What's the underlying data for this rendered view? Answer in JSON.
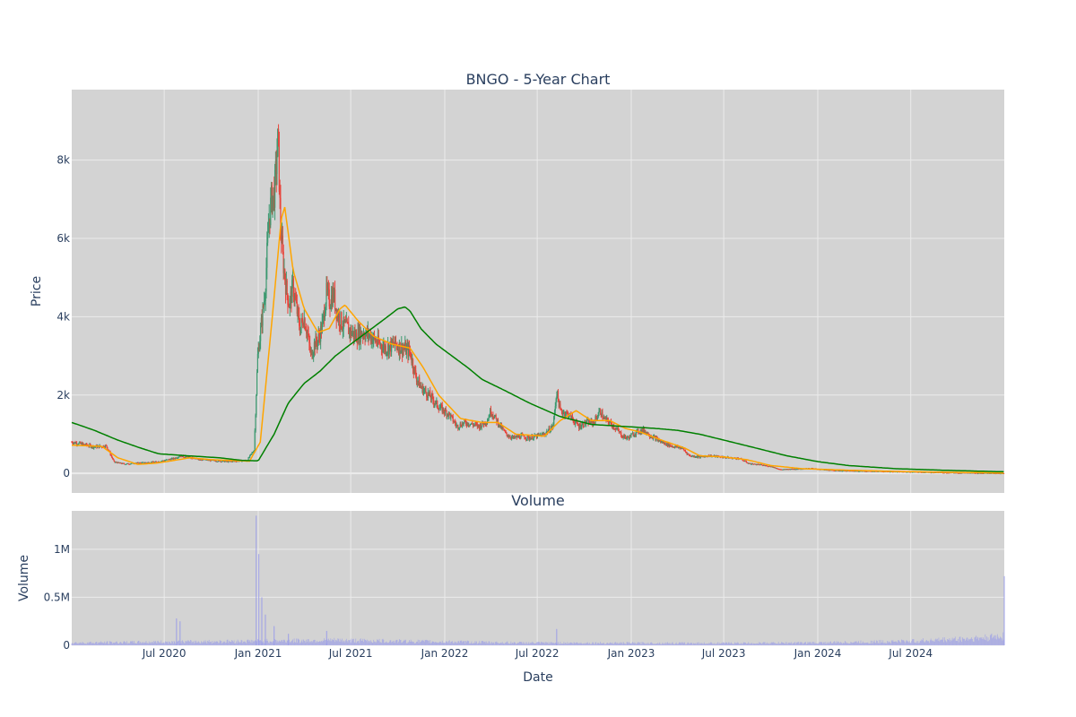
{
  "colors": {
    "plot_bg": "#d3d3d3",
    "grid": "#ebebeb",
    "text": "#2a3f5f",
    "candle_up": "#3d9970",
    "candle_down": "#e8453c",
    "ma_short": "#ffa500",
    "ma_long": "#008000",
    "volume": "#9a9ce8"
  },
  "chart_data": [
    {
      "type": "candlestick",
      "title": "BNGO - 5-Year Chart",
      "ylabel": "Price",
      "ylim": [
        -500,
        9800
      ],
      "yticks": [
        0,
        2000,
        4000,
        6000,
        8000
      ],
      "ytick_labels": [
        "0",
        "2k",
        "4k",
        "6k",
        "8k"
      ],
      "grid": true,
      "legend": "none",
      "price_path": [
        [
          "2020-01-02",
          800
        ],
        [
          "2020-02-15",
          680
        ],
        [
          "2020-03-10",
          700
        ],
        [
          "2020-03-25",
          290
        ],
        [
          "2020-04-15",
          240
        ],
        [
          "2020-05-15",
          270
        ],
        [
          "2020-06-15",
          290
        ],
        [
          "2020-07-20",
          380
        ],
        [
          "2020-08-01",
          450
        ],
        [
          "2020-09-01",
          370
        ],
        [
          "2020-10-01",
          330
        ],
        [
          "2020-11-01",
          300
        ],
        [
          "2020-12-10",
          330
        ],
        [
          "2020-12-24",
          600
        ],
        [
          "2020-12-28",
          2000
        ],
        [
          "2020-12-31",
          3000
        ],
        [
          "2021-01-07",
          3800
        ],
        [
          "2021-01-14",
          4600
        ],
        [
          "2021-01-22",
          6500
        ],
        [
          "2021-01-27",
          7000
        ],
        [
          "2021-02-02",
          7200
        ],
        [
          "2021-02-09",
          8600
        ],
        [
          "2021-02-13",
          6500
        ],
        [
          "2021-02-18",
          5500
        ],
        [
          "2021-02-25",
          4700
        ],
        [
          "2021-03-03",
          4300
        ],
        [
          "2021-03-10",
          4800
        ],
        [
          "2021-03-17",
          4200
        ],
        [
          "2021-03-24",
          3700
        ],
        [
          "2021-03-31",
          4000
        ],
        [
          "2021-04-07",
          3600
        ],
        [
          "2021-04-14",
          3000
        ],
        [
          "2021-04-21",
          3300
        ],
        [
          "2021-04-28",
          3400
        ],
        [
          "2021-05-07",
          3800
        ],
        [
          "2021-05-14",
          4600
        ],
        [
          "2021-05-21",
          4400
        ],
        [
          "2021-05-28",
          4600
        ],
        [
          "2021-06-04",
          4100
        ],
        [
          "2021-06-15",
          3800
        ],
        [
          "2021-06-25",
          3700
        ],
        [
          "2021-07-10",
          3500
        ],
        [
          "2021-07-25",
          3600
        ],
        [
          "2021-08-10",
          3500
        ],
        [
          "2021-08-25",
          3300
        ],
        [
          "2021-09-10",
          3200
        ],
        [
          "2021-09-25",
          3300
        ],
        [
          "2021-10-10",
          3200
        ],
        [
          "2021-10-25",
          3100
        ],
        [
          "2021-11-05",
          2500
        ],
        [
          "2021-11-15",
          2200
        ],
        [
          "2021-12-01",
          2000
        ],
        [
          "2021-12-20",
          1700
        ],
        [
          "2022-01-10",
          1500
        ],
        [
          "2022-01-25",
          1200
        ],
        [
          "2022-02-10",
          1300
        ],
        [
          "2022-02-25",
          1250
        ],
        [
          "2022-03-10",
          1200
        ],
        [
          "2022-03-25",
          1350
        ],
        [
          "2022-04-01",
          1600
        ],
        [
          "2022-04-15",
          1300
        ],
        [
          "2022-05-01",
          1000
        ],
        [
          "2022-05-15",
          900
        ],
        [
          "2022-06-01",
          950
        ],
        [
          "2022-06-15",
          900
        ],
        [
          "2022-07-01",
          950
        ],
        [
          "2022-07-15",
          1000
        ],
        [
          "2022-08-01",
          1200
        ],
        [
          "2022-08-08",
          2100
        ],
        [
          "2022-08-15",
          1600
        ],
        [
          "2022-09-01",
          1500
        ],
        [
          "2022-09-20",
          1200
        ],
        [
          "2022-10-05",
          1300
        ],
        [
          "2022-10-20",
          1300
        ],
        [
          "2022-11-01",
          1600
        ],
        [
          "2022-11-08",
          1400
        ],
        [
          "2022-11-20",
          1300
        ],
        [
          "2022-12-05",
          1100
        ],
        [
          "2022-12-15",
          950
        ],
        [
          "2022-12-25",
          900
        ],
        [
          "2023-01-10",
          1050
        ],
        [
          "2023-01-25",
          1100
        ],
        [
          "2023-02-10",
          950
        ],
        [
          "2023-03-01",
          800
        ],
        [
          "2023-03-20",
          700
        ],
        [
          "2023-04-10",
          650
        ],
        [
          "2023-04-25",
          450
        ],
        [
          "2023-05-15",
          420
        ],
        [
          "2023-06-01",
          450
        ],
        [
          "2023-06-20",
          430
        ],
        [
          "2023-07-10",
          400
        ],
        [
          "2023-08-01",
          380
        ],
        [
          "2023-08-20",
          250
        ],
        [
          "2023-09-10",
          220
        ],
        [
          "2023-10-01",
          180
        ],
        [
          "2023-10-20",
          100
        ],
        [
          "2023-11-10",
          110
        ],
        [
          "2023-12-01",
          120
        ],
        [
          "2023-12-20",
          130
        ],
        [
          "2024-01-15",
          90
        ],
        [
          "2024-02-15",
          70
        ],
        [
          "2024-04-01",
          60
        ],
        [
          "2024-06-01",
          45
        ],
        [
          "2024-08-01",
          30
        ],
        [
          "2024-10-01",
          15
        ],
        [
          "2024-12-31",
          0
        ]
      ],
      "ma_short": [
        [
          "2020-01-02",
          720
        ],
        [
          "2020-03-01",
          690
        ],
        [
          "2020-04-01",
          400
        ],
        [
          "2020-05-10",
          230
        ],
        [
          "2020-06-15",
          260
        ],
        [
          "2020-07-20",
          330
        ],
        [
          "2020-08-20",
          400
        ],
        [
          "2020-10-01",
          350
        ],
        [
          "2020-12-15",
          310
        ],
        [
          "2021-01-05",
          800
        ],
        [
          "2021-01-25",
          3500
        ],
        [
          "2021-02-15",
          6500
        ],
        [
          "2021-02-22",
          6800
        ],
        [
          "2021-03-10",
          5200
        ],
        [
          "2021-04-01",
          4200
        ],
        [
          "2021-04-28",
          3600
        ],
        [
          "2021-05-20",
          3700
        ],
        [
          "2021-06-10",
          4200
        ],
        [
          "2021-06-20",
          4300
        ],
        [
          "2021-07-15",
          3900
        ],
        [
          "2021-08-15",
          3500
        ],
        [
          "2021-09-20",
          3300
        ],
        [
          "2021-10-25",
          3200
        ],
        [
          "2021-11-20",
          2700
        ],
        [
          "2021-12-20",
          2000
        ],
        [
          "2022-02-01",
          1400
        ],
        [
          "2022-03-15",
          1300
        ],
        [
          "2022-04-15",
          1300
        ],
        [
          "2022-05-20",
          1000
        ],
        [
          "2022-07-15",
          950
        ],
        [
          "2022-08-15",
          1350
        ],
        [
          "2022-09-15",
          1600
        ],
        [
          "2022-10-15",
          1350
        ],
        [
          "2022-11-20",
          1350
        ],
        [
          "2022-12-20",
          1150
        ],
        [
          "2023-01-20",
          1050
        ],
        [
          "2023-03-01",
          850
        ],
        [
          "2023-04-15",
          650
        ],
        [
          "2023-05-15",
          450
        ],
        [
          "2023-07-01",
          420
        ],
        [
          "2023-08-15",
          350
        ],
        [
          "2023-10-01",
          200
        ],
        [
          "2023-12-01",
          120
        ],
        [
          "2024-03-01",
          80
        ],
        [
          "2024-06-01",
          50
        ],
        [
          "2024-09-01",
          30
        ],
        [
          "2024-12-31",
          10
        ]
      ],
      "ma_long": [
        [
          "2020-01-02",
          1300
        ],
        [
          "2020-02-15",
          1100
        ],
        [
          "2020-04-01",
          850
        ],
        [
          "2020-05-15",
          650
        ],
        [
          "2020-06-20",
          500
        ],
        [
          "2020-08-15",
          450
        ],
        [
          "2020-10-15",
          400
        ],
        [
          "2020-12-01",
          330
        ],
        [
          "2021-01-01",
          320
        ],
        [
          "2021-02-01",
          1000
        ],
        [
          "2021-03-01",
          1800
        ],
        [
          "2021-04-01",
          2300
        ],
        [
          "2021-05-01",
          2600
        ],
        [
          "2021-06-01",
          3000
        ],
        [
          "2021-07-01",
          3300
        ],
        [
          "2021-08-01",
          3600
        ],
        [
          "2021-09-01",
          3900
        ],
        [
          "2021-10-01",
          4200
        ],
        [
          "2021-10-15",
          4250
        ],
        [
          "2021-10-25",
          4150
        ],
        [
          "2021-11-15",
          3700
        ],
        [
          "2021-12-15",
          3300
        ],
        [
          "2022-01-15",
          3000
        ],
        [
          "2022-02-15",
          2700
        ],
        [
          "2022-03-15",
          2400
        ],
        [
          "2022-05-01",
          2100
        ],
        [
          "2022-06-15",
          1800
        ],
        [
          "2022-08-15",
          1450
        ],
        [
          "2022-10-15",
          1250
        ],
        [
          "2022-12-15",
          1200
        ],
        [
          "2023-02-15",
          1150
        ],
        [
          "2023-04-01",
          1100
        ],
        [
          "2023-05-15",
          1000
        ],
        [
          "2023-07-01",
          850
        ],
        [
          "2023-09-01",
          650
        ],
        [
          "2023-11-01",
          450
        ],
        [
          "2024-01-01",
          300
        ],
        [
          "2024-03-01",
          200
        ],
        [
          "2024-06-01",
          120
        ],
        [
          "2024-09-01",
          80
        ],
        [
          "2024-12-31",
          40
        ]
      ]
    },
    {
      "type": "bar",
      "title": "Volume",
      "xlabel": "Date",
      "ylabel": "Volume",
      "ylim": [
        0,
        1400000
      ],
      "yticks": [
        0,
        500000,
        1000000
      ],
      "ytick_labels": [
        "0",
        "0.5M",
        "1M"
      ],
      "grid": true,
      "spikes": [
        [
          "2020-07-25",
          280000
        ],
        [
          "2020-08-01",
          250000
        ],
        [
          "2020-12-28",
          1350000
        ],
        [
          "2021-01-02",
          950000
        ],
        [
          "2021-01-08",
          500000
        ],
        [
          "2021-01-15",
          320000
        ],
        [
          "2021-02-01",
          200000
        ],
        [
          "2021-03-01",
          120000
        ],
        [
          "2021-05-15",
          150000
        ],
        [
          "2022-08-08",
          170000
        ],
        [
          "2024-12-31",
          720000
        ]
      ],
      "baseline": [
        [
          "2020-01-02",
          30000
        ],
        [
          "2020-07-01",
          40000
        ],
        [
          "2021-06-01",
          60000
        ],
        [
          "2022-06-01",
          30000
        ],
        [
          "2023-06-01",
          25000
        ],
        [
          "2024-01-01",
          30000
        ],
        [
          "2024-07-01",
          50000
        ],
        [
          "2024-12-01",
          90000
        ],
        [
          "2024-12-31",
          120000
        ]
      ]
    }
  ],
  "x_axis": {
    "start": "2020-01-02",
    "end": "2024-12-31",
    "ticks": [
      {
        "date": "2020-07-01",
        "label": "Jul 2020"
      },
      {
        "date": "2021-01-01",
        "label": "Jan 2021"
      },
      {
        "date": "2021-07-01",
        "label": "Jul 2021"
      },
      {
        "date": "2022-01-01",
        "label": "Jan 2022"
      },
      {
        "date": "2022-07-01",
        "label": "Jul 2022"
      },
      {
        "date": "2023-01-01",
        "label": "Jan 2023"
      },
      {
        "date": "2023-07-01",
        "label": "Jul 2023"
      },
      {
        "date": "2024-01-01",
        "label": "Jan 2024"
      },
      {
        "date": "2024-07-01",
        "label": "Jul 2024"
      }
    ]
  }
}
